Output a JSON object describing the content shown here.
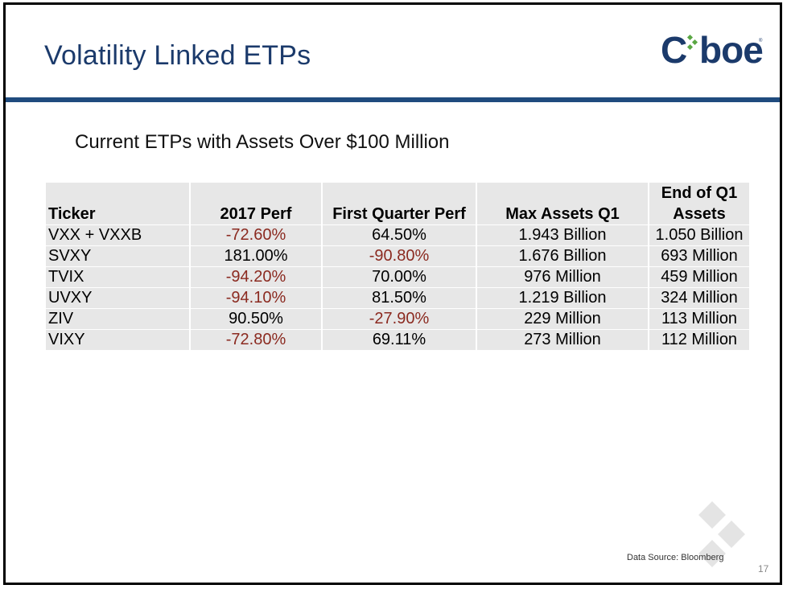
{
  "slide": {
    "title": "Volatility Linked ETPs",
    "logo_text": "Cboe",
    "subtitle": "Current ETPs with Assets Over $100 Million",
    "source": "Data Source: Bloomberg",
    "page_number": "17"
  },
  "colors": {
    "title": "#1b3a6b",
    "rule": "#1f4b7e",
    "negative": "#8b2a20",
    "cell_bg": "#e7e7e7",
    "logo_dots": "#5aa744"
  },
  "table": {
    "headers": [
      "Ticker",
      "2017 Perf",
      "First Quarter Perf",
      "Max Assets Q1",
      "End of Q1 Assets"
    ],
    "rows": [
      [
        "VXX + VXXB",
        "-72.60%",
        "64.50%",
        "1.943 Billion",
        "1.050 Billion"
      ],
      [
        "SVXY",
        "181.00%",
        "-90.80%",
        "1.676 Billion",
        "693 Million"
      ],
      [
        "TVIX",
        "-94.20%",
        "70.00%",
        "976 Million",
        "459 Million"
      ],
      [
        "UVXY",
        "-94.10%",
        "81.50%",
        "1.219 Billion",
        "324 Million"
      ],
      [
        "ZIV",
        "90.50%",
        "-27.90%",
        "229 Million",
        "113 Million"
      ],
      [
        "VIXY",
        "-72.80%",
        "69.11%",
        "273 Million",
        "112 Million"
      ]
    ]
  }
}
